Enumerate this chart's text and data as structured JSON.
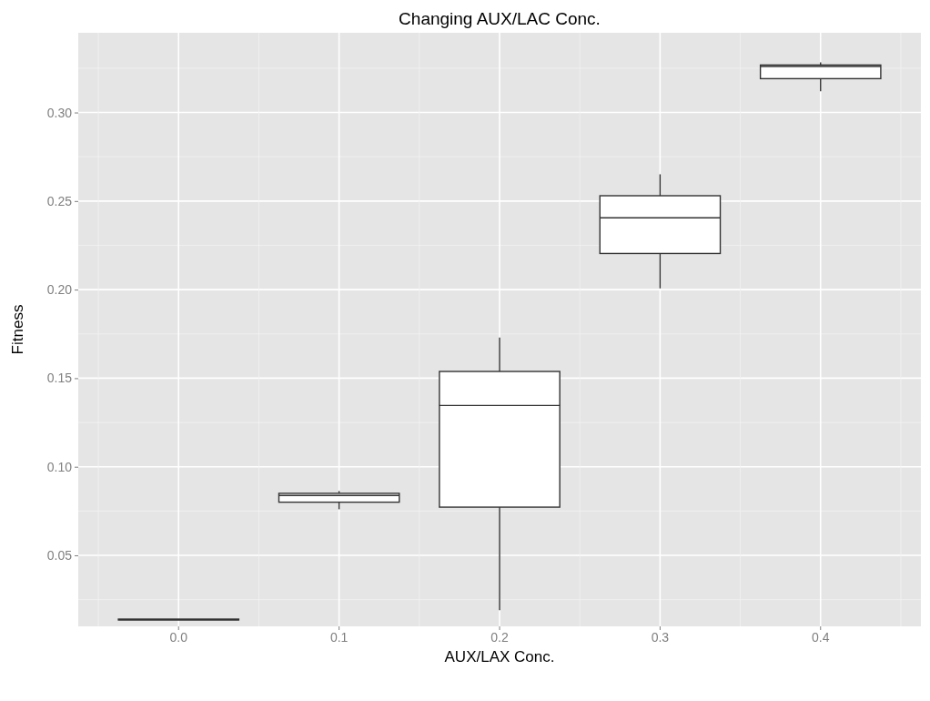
{
  "chart_data": {
    "type": "box",
    "title": "Changing AUX/LAC Conc.",
    "xlabel": "AUX/LAX Conc.",
    "ylabel": "Fitness",
    "categories": [
      "0.0",
      "0.1",
      "0.2",
      "0.3",
      "0.4"
    ],
    "boxes": [
      {
        "low": 0.0135,
        "q1": 0.0135,
        "median": 0.0137,
        "q3": 0.014,
        "high": 0.014
      },
      {
        "low": 0.076,
        "q1": 0.08,
        "median": 0.0838,
        "q3": 0.085,
        "high": 0.0863
      },
      {
        "low": 0.019,
        "q1": 0.0772,
        "median": 0.1346,
        "q3": 0.1538,
        "high": 0.173
      },
      {
        "low": 0.2007,
        "q1": 0.2204,
        "median": 0.2405,
        "q3": 0.253,
        "high": 0.2651
      },
      {
        "low": 0.312,
        "q1": 0.3191,
        "median": 0.326,
        "q3": 0.3268,
        "high": 0.3283
      }
    ],
    "ylim": [
      0.0099,
      0.345
    ],
    "yticks": [
      {
        "value": 0.05,
        "label": "0.05"
      },
      {
        "value": 0.1,
        "label": "0.10"
      },
      {
        "value": 0.15,
        "label": "0.15"
      },
      {
        "value": 0.2,
        "label": "0.20"
      },
      {
        "value": 0.25,
        "label": "0.25"
      },
      {
        "value": 0.3,
        "label": "0.30"
      }
    ],
    "grid": true
  }
}
